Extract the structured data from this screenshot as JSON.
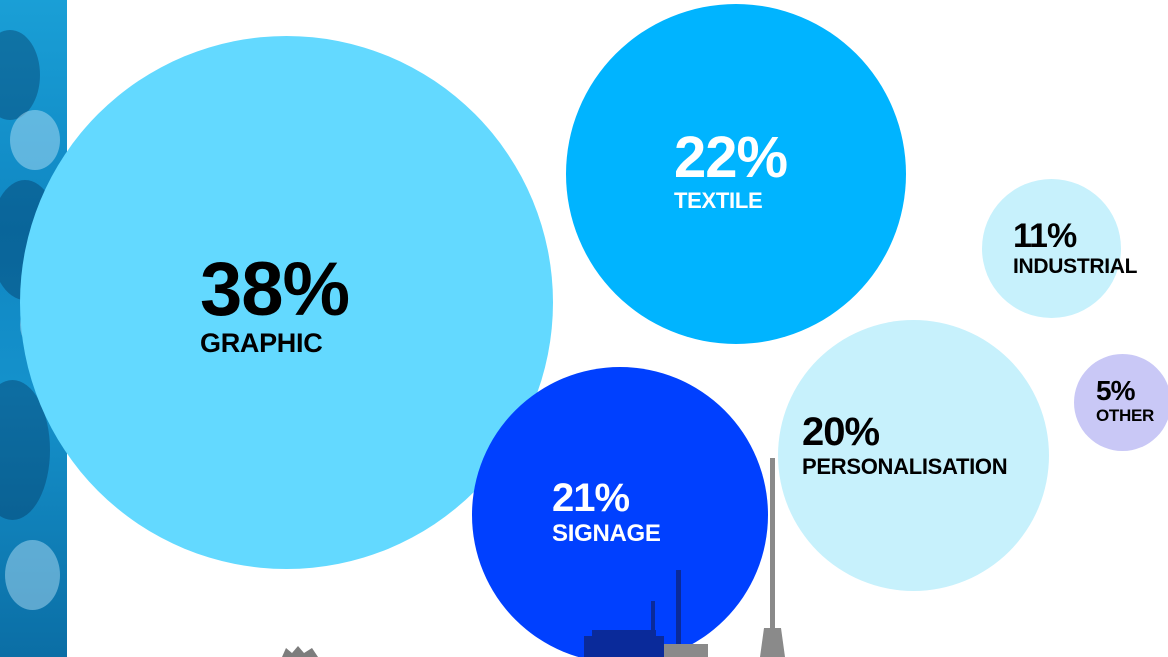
{
  "chart_data": {
    "type": "bubble",
    "title": "",
    "legend": "none",
    "grid": false,
    "series": [
      {
        "values": [
          38,
          22,
          21,
          20,
          11,
          5
        ],
        "categories": [
          "GRAPHIC",
          "TEXTILE",
          "SIGNAGE",
          "PERSONALISATION",
          "INDUSTRIAL",
          "OTHER"
        ]
      }
    ],
    "bubbles": [
      {
        "category": "GRAPHIC",
        "value": 38,
        "value_label": "38%",
        "color": "#63d9ff",
        "text_color": "#000000"
      },
      {
        "category": "TEXTILE",
        "value": 22,
        "value_label": "22%",
        "color": "#00b4ff",
        "text_color": "#ffffff"
      },
      {
        "category": "SIGNAGE",
        "value": 21,
        "value_label": "21%",
        "color": "#0040ff",
        "text_color": "#ffffff"
      },
      {
        "category": "PERSONALISATION",
        "value": 20,
        "value_label": "20%",
        "color": "#c7f1fc",
        "text_color": "#000000"
      },
      {
        "category": "INDUSTRIAL",
        "value": 11,
        "value_label": "11%",
        "color": "#c7f1fc",
        "text_color": "#000000"
      },
      {
        "category": "OTHER",
        "value": 5,
        "value_label": "5%",
        "color": "#c9c8f6",
        "text_color": "#000000"
      }
    ]
  }
}
